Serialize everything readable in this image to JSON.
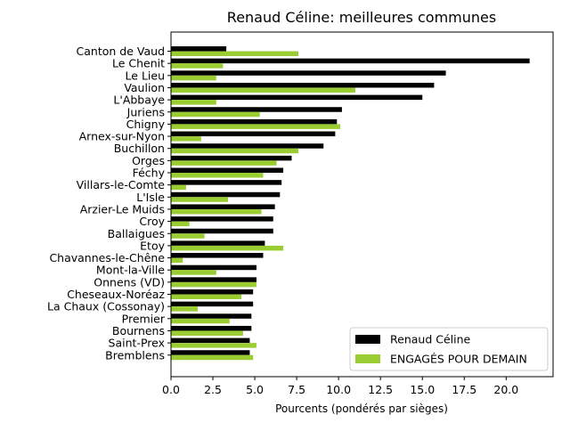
{
  "chart_data": {
    "type": "bar",
    "orientation": "horizontal",
    "title": "Renaud Céline: meilleures communes",
    "xlabel": "Pourcents (pondérés par sièges)",
    "ylabel": "",
    "xlim": [
      0,
      22.8
    ],
    "xticks": [
      0.0,
      2.5,
      5.0,
      7.5,
      10.0,
      12.5,
      15.0,
      17.5,
      20.0
    ],
    "xtick_labels": [
      "0.0",
      "2.5",
      "5.0",
      "7.5",
      "10.0",
      "12.5",
      "15.0",
      "17.5",
      "20.0"
    ],
    "grid": false,
    "legend_position": "lower-right",
    "categories": [
      "Canton de Vaud",
      "Le Chenit",
      "Le Lieu",
      "Vaulion",
      "L'Abbaye",
      "Juriens",
      "Chigny",
      "Arnex-sur-Nyon",
      "Buchillon",
      "Orges",
      "Féchy",
      "Villars-le-Comte",
      "L'Isle",
      "Arzier-Le Muids",
      "Croy",
      "Ballaigues",
      "Etoy",
      "Chavannes-le-Chêne",
      "Mont-la-Ville",
      "Onnens (VD)",
      "Cheseaux-Noréaz",
      "La Chaux (Cossonay)",
      "Premier",
      "Bournens",
      "Saint-Prex",
      "Bremblens"
    ],
    "series": [
      {
        "name": "Renaud Céline",
        "color": "#000000",
        "values": [
          3.3,
          21.4,
          16.4,
          15.7,
          15.0,
          10.2,
          9.9,
          9.8,
          9.1,
          7.2,
          6.7,
          6.6,
          6.5,
          6.2,
          6.1,
          6.1,
          5.6,
          5.5,
          5.1,
          5.1,
          4.9,
          4.9,
          4.8,
          4.8,
          4.7,
          4.7
        ]
      },
      {
        "name": "ENGAGÉS POUR DEMAIN",
        "color": "#9acd32",
        "values": [
          7.6,
          3.1,
          2.7,
          11.0,
          2.7,
          5.3,
          10.1,
          1.8,
          7.6,
          6.3,
          5.5,
          0.9,
          3.4,
          5.4,
          1.1,
          2.0,
          6.7,
          0.7,
          2.7,
          5.1,
          4.2,
          1.6,
          3.5,
          4.3,
          5.1,
          4.9
        ]
      }
    ]
  }
}
